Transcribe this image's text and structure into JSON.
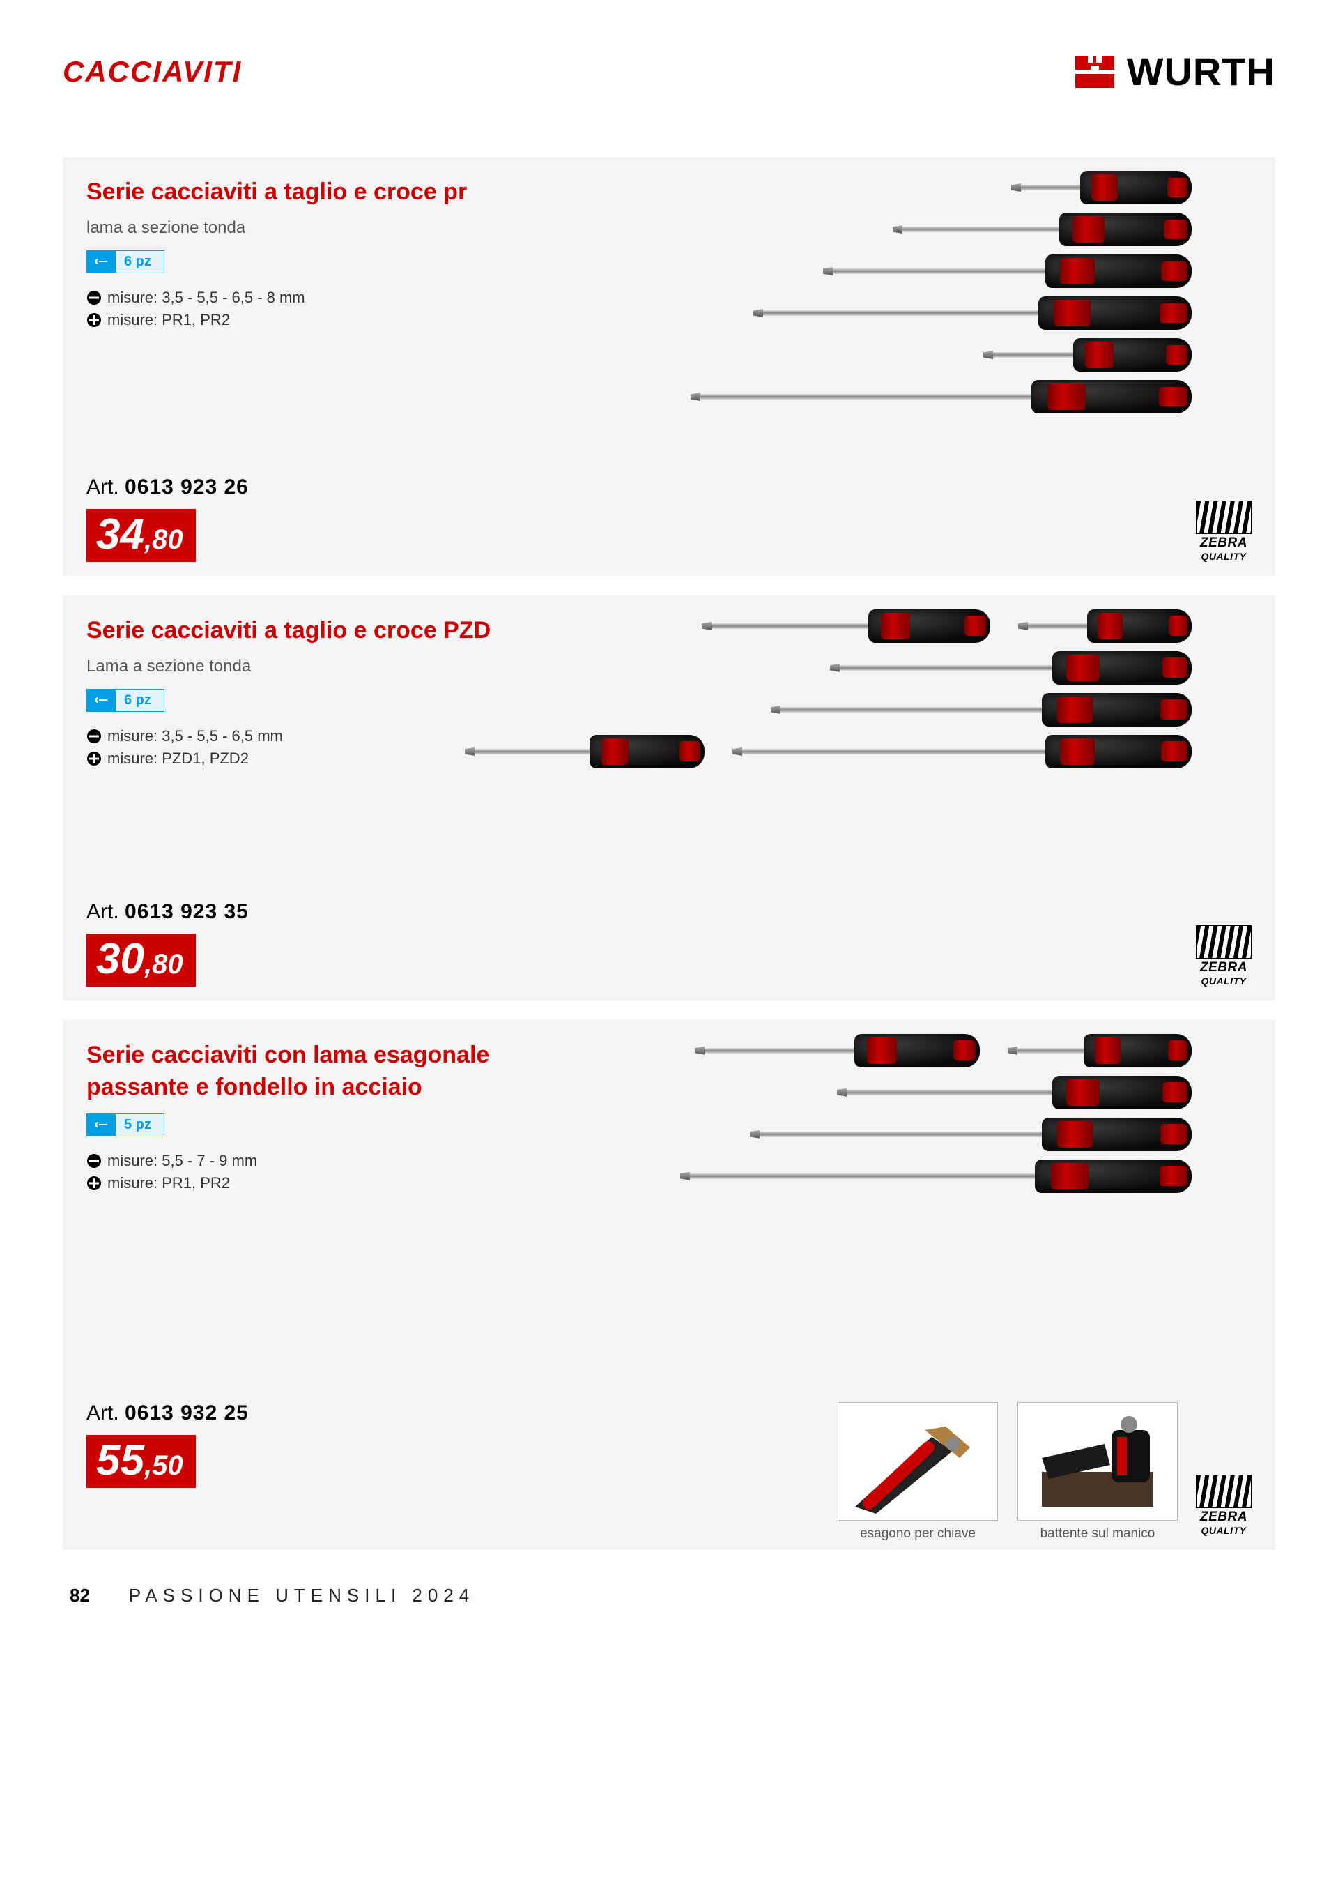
{
  "colors": {
    "brand_red": "#cc0000",
    "brand_blue": "#009fe3",
    "card_bg": "#f4f4f4",
    "text_gray": "#555555"
  },
  "header": {
    "category": "CACCIAVITI",
    "brand": "WURTH"
  },
  "products": [
    {
      "title": "Serie cacciaviti a taglio e croce pr",
      "subtitle": "lama a sezione tonda",
      "pieces": "6 pz",
      "spec_flat": "misure: 3,5 - 5,5 - 6,5 - 8 mm",
      "spec_cross": "misure: PR1, PR2",
      "art_label": "Art.",
      "art_number": "0613 923 26",
      "price_euro": "34",
      "price_cents": ",80",
      "badge1": "ZEBRA",
      "badge2": "QUALITY",
      "screwdrivers": [
        {
          "shaft": 90,
          "handle": 160
        },
        {
          "shaft": 230,
          "handle": 190
        },
        {
          "shaft": 310,
          "handle": 210
        },
        {
          "shaft": 400,
          "handle": 220
        },
        {
          "shaft": 120,
          "handle": 170
        },
        {
          "shaft": 480,
          "handle": 230
        }
      ]
    },
    {
      "title": "Serie cacciaviti a taglio e croce PZD",
      "subtitle": "Lama a sezione tonda",
      "pieces": "6 pz",
      "spec_flat": "misure: 3,5 - 5,5 - 6,5 mm",
      "spec_cross": "misure: PZD1, PZD2",
      "art_label": "Art.",
      "art_number": "0613 923 35",
      "price_euro": "30",
      "price_cents": ",80",
      "badge1": "ZEBRA",
      "badge2": "QUALITY",
      "screwdrivers": [
        {
          "shaft": 230,
          "handle": 175,
          "row": 1
        },
        {
          "shaft": 90,
          "handle": 150,
          "row": 1
        },
        {
          "shaft": 310,
          "handle": 200
        },
        {
          "shaft": 380,
          "handle": 215
        },
        {
          "shaft": 170,
          "handle": 165,
          "row": 2
        },
        {
          "shaft": 440,
          "handle": 210,
          "row": 2
        }
      ]
    },
    {
      "title": "Serie cacciaviti con lama esagonale passante e fondello in acciaio",
      "subtitle": "",
      "pieces": "5 pz",
      "spec_flat": "misure: 5,5 - 7 - 9 mm",
      "spec_cross": "misure: PR1, PR2",
      "art_label": "Art.",
      "art_number": "0613 932 25",
      "price_euro": "55",
      "price_cents": ",50",
      "badge1": "ZEBRA",
      "badge2": "QUALITY",
      "screwdrivers": [
        {
          "shaft": 220,
          "handle": 180,
          "row": 1
        },
        {
          "shaft": 100,
          "handle": 155,
          "row": 1
        },
        {
          "shaft": 300,
          "handle": 200
        },
        {
          "shaft": 410,
          "handle": 215
        },
        {
          "shaft": 500,
          "handle": 225
        }
      ],
      "thumbs": [
        {
          "caption": "esagono per chiave"
        },
        {
          "caption": "battente sul manico"
        }
      ]
    }
  ],
  "footer": {
    "page": "82",
    "title": "PASSIONE UTENSILI 2024"
  }
}
